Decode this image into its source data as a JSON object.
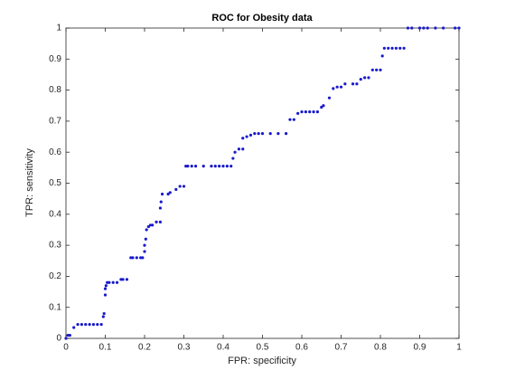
{
  "chart_data": {
    "type": "scatter",
    "title": "ROC for Obesity data",
    "x_label": "FPR: specificity",
    "y_label": "TPR: sensitivity",
    "series": [
      {
        "color": "#1a1acc",
        "x": [
          0,
          0.005,
          0.01,
          0.02,
          0.03,
          0.04,
          0.05,
          0.06,
          0.07,
          0.08,
          0.09,
          0.095,
          0.097,
          0.1,
          0.1,
          0.102,
          0.105,
          0.11,
          0.12,
          0.13,
          0.14,
          0.145,
          0.155,
          0.165,
          0.17,
          0.18,
          0.19,
          0.195,
          0.2,
          0.2,
          0.203,
          0.205,
          0.21,
          0.215,
          0.22,
          0.23,
          0.24,
          0.24,
          0.242,
          0.245,
          0.26,
          0.265,
          0.28,
          0.29,
          0.3,
          0.305,
          0.31,
          0.32,
          0.33,
          0.35,
          0.37,
          0.38,
          0.39,
          0.4,
          0.41,
          0.42,
          0.425,
          0.43,
          0.44,
          0.45,
          0.45,
          0.46,
          0.47,
          0.48,
          0.49,
          0.5,
          0.52,
          0.54,
          0.56,
          0.57,
          0.58,
          0.59,
          0.6,
          0.61,
          0.62,
          0.63,
          0.64,
          0.65,
          0.655,
          0.67,
          0.68,
          0.69,
          0.7,
          0.71,
          0.73,
          0.74,
          0.75,
          0.76,
          0.77,
          0.78,
          0.79,
          0.8,
          0.805,
          0.81,
          0.82,
          0.83,
          0.84,
          0.85,
          0.86,
          0.87,
          0.88,
          0.9,
          0.91,
          0.92,
          0.94,
          0.96,
          0.99,
          1
        ],
        "y": [
          0,
          0.01,
          0.01,
          0.035,
          0.045,
          0.045,
          0.045,
          0.045,
          0.045,
          0.045,
          0.045,
          0.07,
          0.08,
          0.14,
          0.16,
          0.17,
          0.18,
          0.18,
          0.18,
          0.18,
          0.19,
          0.19,
          0.19,
          0.26,
          0.26,
          0.26,
          0.26,
          0.26,
          0.28,
          0.3,
          0.32,
          0.35,
          0.36,
          0.365,
          0.365,
          0.375,
          0.375,
          0.42,
          0.44,
          0.465,
          0.465,
          0.47,
          0.48,
          0.49,
          0.49,
          0.555,
          0.555,
          0.555,
          0.555,
          0.555,
          0.555,
          0.555,
          0.555,
          0.555,
          0.555,
          0.555,
          0.58,
          0.6,
          0.61,
          0.61,
          0.645,
          0.65,
          0.655,
          0.66,
          0.66,
          0.66,
          0.66,
          0.66,
          0.66,
          0.705,
          0.705,
          0.725,
          0.73,
          0.73,
          0.73,
          0.73,
          0.73,
          0.745,
          0.75,
          0.775,
          0.805,
          0.81,
          0.81,
          0.82,
          0.82,
          0.82,
          0.835,
          0.84,
          0.84,
          0.865,
          0.865,
          0.865,
          0.91,
          0.935,
          0.935,
          0.935,
          0.935,
          0.935,
          0.935,
          1,
          1,
          1,
          1,
          1,
          1,
          1,
          1,
          1
        ]
      }
    ],
    "xlim": [
      0,
      1
    ],
    "ylim": [
      0,
      1
    ],
    "xticks": [
      0,
      0.1,
      0.2,
      0.3,
      0.4,
      0.5,
      0.6,
      0.7,
      0.8,
      0.9,
      1
    ],
    "yticks": [
      0,
      0.1,
      0.2,
      0.3,
      0.4,
      0.5,
      0.6,
      0.7,
      0.8,
      0.9,
      1
    ]
  }
}
